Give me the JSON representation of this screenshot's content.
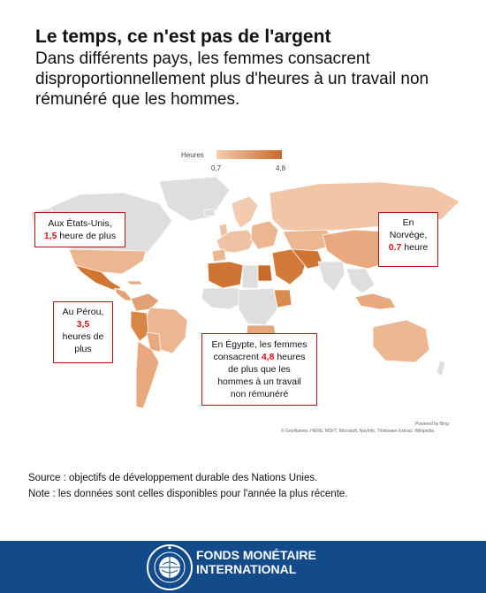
{
  "header": {
    "title": "Le temps, ce n'est pas de l'argent",
    "subtitle": "Dans différents pays, les femmes consacrent disproportionnellement plus d'heures à un travail non rémunéré que les hommes."
  },
  "legend": {
    "title": "Heures",
    "min_label": "0,7",
    "max_label": "4,8",
    "min_value": 0.7,
    "max_value": 4.8,
    "color_low": "#f3ccb0",
    "color_high": "#c9692a"
  },
  "map_colors": {
    "no_data": "#dedede",
    "ocean": "#ffffff",
    "callout_border": "#b1121a",
    "highlight_text": "#d8111b"
  },
  "callouts": {
    "usa": {
      "line1": "Aux États-Unis,",
      "value": "1,5",
      "rest": " heure de plus"
    },
    "norway": {
      "line1": "En",
      "line2": "Norvège,",
      "value": "0.7",
      "rest": " heure"
    },
    "peru": {
      "line1": "Au Pérou,",
      "value": "3,5",
      "line3": "heures de",
      "line4": "plus"
    },
    "egypt": {
      "line1": "En Égypte, les femmes",
      "line2_pre": "consacrent ",
      "value": "4,8",
      "line2_post": " heures",
      "line3": "de plus que les",
      "line4": "hommes à un travail",
      "line5": "non rémunéré"
    }
  },
  "credits": {
    "powered": "Powered by Bing",
    "sources": "© GeoNames, HERE, MSFT, Microsoft, NavInfo, Thinkware Extract, Wikipedia"
  },
  "footnotes": {
    "source": "Source : objectifs de développement durable des Nations Unies.",
    "note": "Note : les données sont celles disponibles pour l'année la plus récente."
  },
  "footer": {
    "org_line1": "FONDS MONÉTAIRE",
    "org_line2": "INTERNATIONAL",
    "background": "#134b8a",
    "seal_text": "INTERNATIONAL MONETARY FUND"
  }
}
